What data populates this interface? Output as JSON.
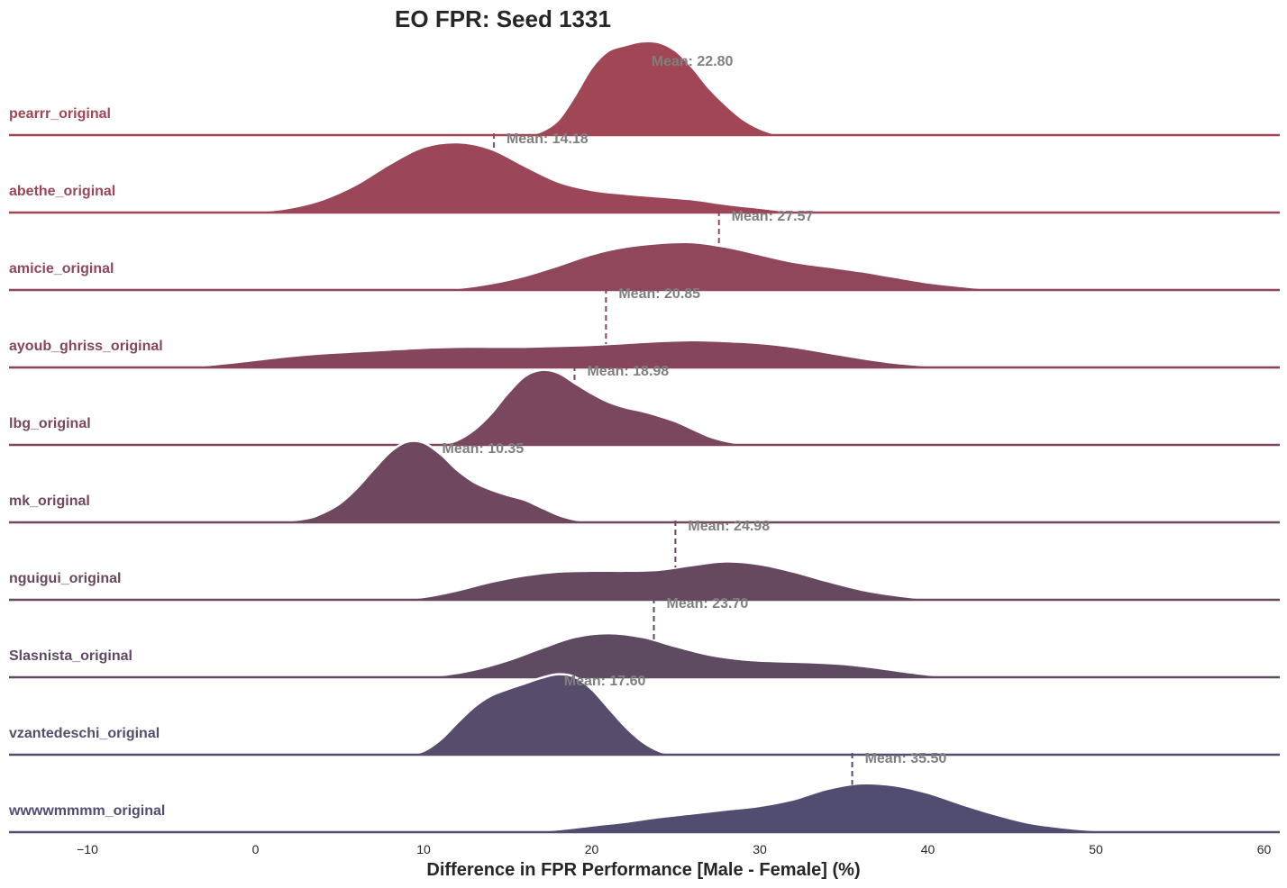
{
  "chart_data": {
    "type": "ridgeline",
    "title": "EO FPR: Seed 1331",
    "xlabel": "Difference in FPR Performance [Male - Female] (%)",
    "xlim": [
      -15,
      61
    ],
    "xticks": [
      -10,
      0,
      10,
      20,
      30,
      40,
      50,
      60
    ],
    "xtick_labels": [
      "−10",
      "0",
      "10",
      "20",
      "30",
      "40",
      "50",
      "60"
    ],
    "mean_prefix": "Mean: ",
    "series": [
      {
        "name": "pearrr_original",
        "color": "#a14654",
        "mean": 22.8,
        "mean_label": "22.80",
        "density": [
          [
            16,
            0
          ],
          [
            17,
            0.04
          ],
          [
            18,
            0.16
          ],
          [
            19,
            0.42
          ],
          [
            20,
            0.72
          ],
          [
            21,
            0.9
          ],
          [
            22,
            0.96
          ],
          [
            23,
            1.0
          ],
          [
            24,
            0.99
          ],
          [
            25,
            0.9
          ],
          [
            26,
            0.72
          ],
          [
            27,
            0.5
          ],
          [
            28,
            0.32
          ],
          [
            29,
            0.17
          ],
          [
            30,
            0.07
          ],
          [
            31,
            0.01
          ],
          [
            31.5,
            0
          ]
        ]
      },
      {
        "name": "abethe_original",
        "color": "#9b4659",
        "mean": 14.18,
        "mean_label": "14.18",
        "density": [
          [
            -2,
            0
          ],
          [
            0,
            0.01
          ],
          [
            2,
            0.05
          ],
          [
            4,
            0.14
          ],
          [
            6,
            0.3
          ],
          [
            8,
            0.52
          ],
          [
            10,
            0.7
          ],
          [
            12,
            0.75
          ],
          [
            14,
            0.68
          ],
          [
            16,
            0.5
          ],
          [
            18,
            0.33
          ],
          [
            20,
            0.24
          ],
          [
            22,
            0.2
          ],
          [
            24,
            0.17
          ],
          [
            26,
            0.14
          ],
          [
            28,
            0.09
          ],
          [
            30,
            0.05
          ],
          [
            32,
            0.01
          ],
          [
            33,
            0
          ]
        ]
      },
      {
        "name": "amicie_original",
        "color": "#90475c",
        "mean": 27.57,
        "mean_label": "27.57",
        "density": [
          [
            10,
            0
          ],
          [
            12,
            0.02
          ],
          [
            14,
            0.07
          ],
          [
            16,
            0.15
          ],
          [
            18,
            0.26
          ],
          [
            20,
            0.38
          ],
          [
            22,
            0.46
          ],
          [
            24,
            0.5
          ],
          [
            26,
            0.51
          ],
          [
            28,
            0.46
          ],
          [
            30,
            0.38
          ],
          [
            32,
            0.3
          ],
          [
            34,
            0.25
          ],
          [
            36,
            0.2
          ],
          [
            38,
            0.14
          ],
          [
            40,
            0.08
          ],
          [
            42,
            0.04
          ],
          [
            44,
            0.01
          ],
          [
            46,
            0
          ]
        ]
      },
      {
        "name": "ayoub_ghriss_original",
        "color": "#85465d",
        "mean": 20.85,
        "mean_label": "20.85",
        "density": [
          [
            -6,
            0
          ],
          [
            -4,
            0.01
          ],
          [
            -2,
            0.04
          ],
          [
            0,
            0.08
          ],
          [
            2,
            0.12
          ],
          [
            4,
            0.15
          ],
          [
            6,
            0.17
          ],
          [
            8,
            0.19
          ],
          [
            10,
            0.21
          ],
          [
            12,
            0.22
          ],
          [
            14,
            0.22
          ],
          [
            16,
            0.22
          ],
          [
            18,
            0.23
          ],
          [
            20,
            0.24
          ],
          [
            22,
            0.26
          ],
          [
            24,
            0.28
          ],
          [
            26,
            0.29
          ],
          [
            28,
            0.28
          ],
          [
            30,
            0.26
          ],
          [
            32,
            0.22
          ],
          [
            34,
            0.16
          ],
          [
            36,
            0.1
          ],
          [
            38,
            0.05
          ],
          [
            40,
            0.02
          ],
          [
            42,
            0
          ]
        ]
      },
      {
        "name": "lbg_original",
        "color": "#7a475f",
        "mean": 18.98,
        "mean_label": "18.98",
        "density": [
          [
            11,
            0
          ],
          [
            12,
            0.05
          ],
          [
            13,
            0.16
          ],
          [
            14,
            0.33
          ],
          [
            15,
            0.55
          ],
          [
            16,
            0.73
          ],
          [
            17,
            0.8
          ],
          [
            18,
            0.77
          ],
          [
            19,
            0.66
          ],
          [
            20,
            0.55
          ],
          [
            21,
            0.46
          ],
          [
            22,
            0.4
          ],
          [
            23,
            0.36
          ],
          [
            24,
            0.31
          ],
          [
            25,
            0.25
          ],
          [
            26,
            0.17
          ],
          [
            27,
            0.09
          ],
          [
            28,
            0.04
          ],
          [
            29,
            0.01
          ],
          [
            30,
            0
          ]
        ]
      },
      {
        "name": "mk_original",
        "color": "#6f475f",
        "mean": 10.35,
        "mean_label": "10.35",
        "density": [
          [
            1,
            0
          ],
          [
            3,
            0.04
          ],
          [
            4,
            0.1
          ],
          [
            5,
            0.2
          ],
          [
            6,
            0.36
          ],
          [
            7,
            0.56
          ],
          [
            8,
            0.75
          ],
          [
            9,
            0.86
          ],
          [
            10,
            0.85
          ],
          [
            11,
            0.73
          ],
          [
            12,
            0.56
          ],
          [
            13,
            0.43
          ],
          [
            14,
            0.35
          ],
          [
            15,
            0.29
          ],
          [
            16,
            0.24
          ],
          [
            17,
            0.16
          ],
          [
            18,
            0.08
          ],
          [
            19,
            0.03
          ],
          [
            20,
            0.01
          ],
          [
            21,
            0
          ]
        ]
      },
      {
        "name": "nguigui_original",
        "color": "#67495f",
        "mean": 24.98,
        "mean_label": "24.98",
        "density": [
          [
            8,
            0
          ],
          [
            10,
            0.03
          ],
          [
            12,
            0.1
          ],
          [
            14,
            0.19
          ],
          [
            16,
            0.26
          ],
          [
            18,
            0.3
          ],
          [
            20,
            0.31
          ],
          [
            22,
            0.31
          ],
          [
            24,
            0.32
          ],
          [
            26,
            0.37
          ],
          [
            28,
            0.41
          ],
          [
            30,
            0.38
          ],
          [
            32,
            0.3
          ],
          [
            34,
            0.2
          ],
          [
            36,
            0.11
          ],
          [
            38,
            0.05
          ],
          [
            40,
            0.01
          ],
          [
            41,
            0
          ]
        ]
      },
      {
        "name": "Slasnista_original",
        "color": "#5f4b61",
        "mean": 23.7,
        "mean_label": "23.70",
        "density": [
          [
            9,
            0
          ],
          [
            11,
            0.02
          ],
          [
            13,
            0.08
          ],
          [
            15,
            0.18
          ],
          [
            17,
            0.31
          ],
          [
            19,
            0.43
          ],
          [
            21,
            0.47
          ],
          [
            23,
            0.43
          ],
          [
            25,
            0.33
          ],
          [
            27,
            0.24
          ],
          [
            29,
            0.19
          ],
          [
            31,
            0.17
          ],
          [
            33,
            0.16
          ],
          [
            35,
            0.14
          ],
          [
            37,
            0.1
          ],
          [
            39,
            0.05
          ],
          [
            41,
            0.01
          ],
          [
            42,
            0
          ]
        ]
      },
      {
        "name": "vzantedeschi_original",
        "color": "#584c6c",
        "mean": 17.6,
        "mean_label": "17.60",
        "density": [
          [
            9,
            0
          ],
          [
            10,
            0.04
          ],
          [
            11,
            0.16
          ],
          [
            12,
            0.34
          ],
          [
            13,
            0.51
          ],
          [
            14,
            0.63
          ],
          [
            15,
            0.7
          ],
          [
            16,
            0.76
          ],
          [
            17,
            0.82
          ],
          [
            18,
            0.86
          ],
          [
            19,
            0.83
          ],
          [
            20,
            0.7
          ],
          [
            21,
            0.5
          ],
          [
            22,
            0.3
          ],
          [
            23,
            0.14
          ],
          [
            24,
            0.04
          ],
          [
            25,
            0
          ]
        ]
      },
      {
        "name": "wwwwmmmm_original",
        "color": "#514d70",
        "mean": 35.5,
        "mean_label": "35.50",
        "density": [
          [
            16,
            0
          ],
          [
            18,
            0.03
          ],
          [
            20,
            0.07
          ],
          [
            22,
            0.11
          ],
          [
            24,
            0.16
          ],
          [
            26,
            0.2
          ],
          [
            28,
            0.24
          ],
          [
            30,
            0.28
          ],
          [
            32,
            0.35
          ],
          [
            34,
            0.46
          ],
          [
            36,
            0.52
          ],
          [
            38,
            0.5
          ],
          [
            40,
            0.42
          ],
          [
            42,
            0.3
          ],
          [
            44,
            0.19
          ],
          [
            46,
            0.1
          ],
          [
            48,
            0.05
          ],
          [
            50,
            0.02
          ],
          [
            52,
            0
          ]
        ]
      }
    ]
  }
}
